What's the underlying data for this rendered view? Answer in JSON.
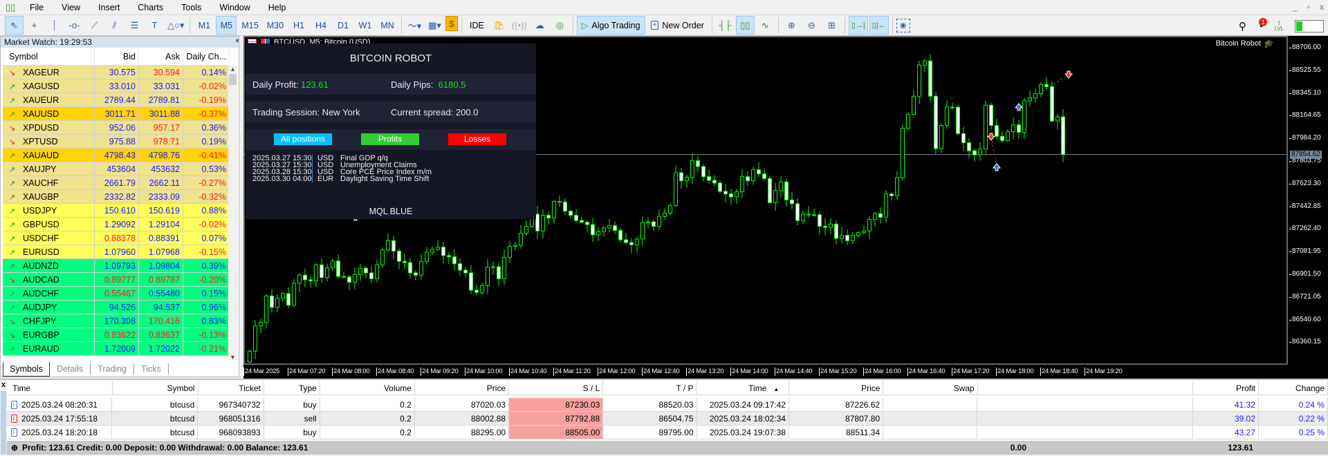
{
  "menu": {
    "items": [
      "File",
      "View",
      "Insert",
      "Charts",
      "Tools",
      "Window",
      "Help"
    ],
    "window_controls": [
      "_",
      "▫",
      "x"
    ]
  },
  "toolbar": {
    "drawing_tools": [
      {
        "name": "cursor",
        "glyph": "⇖",
        "selected": true
      },
      {
        "name": "crosshair",
        "glyph": "+"
      },
      {
        "name": "vertical-line",
        "glyph": "┊"
      },
      {
        "name": "horizontal-line",
        "glyph": "-o-"
      },
      {
        "name": "trendline",
        "glyph": "⟋"
      },
      {
        "name": "channel",
        "glyph": "⫽"
      },
      {
        "name": "fibonacci",
        "glyph": "☰"
      },
      {
        "name": "text",
        "glyph": "T"
      },
      {
        "name": "shapes",
        "glyph": "△○▾"
      }
    ],
    "timeframes": [
      "M1",
      "M5",
      "M15",
      "M30",
      "H1",
      "H4",
      "D1",
      "W1",
      "MN"
    ],
    "selected_timeframe": "M5",
    "chart_tools": [
      {
        "name": "chart-type",
        "glyph": "〜▾"
      },
      {
        "name": "indicators",
        "glyph": "▦▾"
      },
      {
        "name": "market-dollar",
        "glyph": "$"
      }
    ],
    "ide_label": "IDE",
    "service_icons": [
      "market-bag",
      "signals",
      "cloud",
      "vps"
    ],
    "algo_trading_label": "Algo Trading",
    "new_order_label": "New Order",
    "chart_view_icons": [
      {
        "name": "bar-chart",
        "glyph": "┤├"
      },
      {
        "name": "candlesticks",
        "glyph": "▯▯",
        "selected": true
      },
      {
        "name": "line-chart",
        "glyph": "∿"
      }
    ],
    "zoom_icons": [
      {
        "name": "zoom-in",
        "glyph": "⊕"
      },
      {
        "name": "zoom-out",
        "glyph": "⊖"
      },
      {
        "name": "grid",
        "glyph": "⊞"
      }
    ],
    "scroll_icons": [
      {
        "name": "autoscroll",
        "glyph": "▯→|",
        "selected": true
      },
      {
        "name": "chart-shift",
        "glyph": "▯|←",
        "selected": true
      }
    ],
    "screenshot_icon": "camera",
    "notification_count": "1",
    "level_label": "LVL"
  },
  "market_watch": {
    "title": "Market Watch: 19:29:53",
    "columns": [
      "Symbol",
      "Bid",
      "Ask",
      "Daily Ch..."
    ],
    "colors": {
      "blue": "#1a1aff",
      "red": "#ff1a1a",
      "up": "#1a9e1a",
      "down": "#e02020",
      "khaki": "#efe38f",
      "gold": "#ffd400",
      "yellow": "#ffff5a",
      "green": "#00ff80"
    },
    "rows": [
      {
        "symbol": "XAGEUR",
        "dir": "down",
        "bid": "30.575",
        "bid_c": "blue",
        "ask": "30.594",
        "ask_c": "red",
        "change": "0.14%",
        "chg_c": "blue",
        "bg": "khaki"
      },
      {
        "symbol": "XAGUSD",
        "dir": "up",
        "bid": "33.010",
        "bid_c": "blue",
        "ask": "33.031",
        "ask_c": "blue",
        "change": "-0.02%",
        "chg_c": "red",
        "bg": "khaki"
      },
      {
        "symbol": "XAUEUR",
        "dir": "up",
        "bid": "2789.44",
        "bid_c": "blue",
        "ask": "2789.81",
        "ask_c": "blue",
        "change": "-0.19%",
        "chg_c": "red",
        "bg": "khaki"
      },
      {
        "symbol": "XAUUSD",
        "dir": "up",
        "bid": "3011.71",
        "bid_c": "blue",
        "ask": "3011.88",
        "ask_c": "blue",
        "change": "-0.37%",
        "chg_c": "red",
        "bg": "gold"
      },
      {
        "symbol": "XPDUSD",
        "dir": "down",
        "bid": "952.06",
        "bid_c": "blue",
        "ask": "957.17",
        "ask_c": "red",
        "change": "0.36%",
        "chg_c": "blue",
        "bg": "khaki"
      },
      {
        "symbol": "XPTUSD",
        "dir": "down",
        "bid": "975.88",
        "bid_c": "blue",
        "ask": "978.71",
        "ask_c": "red",
        "change": "0.19%",
        "chg_c": "blue",
        "bg": "khaki"
      },
      {
        "symbol": "XAUAUD",
        "dir": "up",
        "bid": "4798.43",
        "bid_c": "blue",
        "ask": "4798.76",
        "ask_c": "blue",
        "change": "-0.41%",
        "chg_c": "red",
        "bg": "gold"
      },
      {
        "symbol": "XAUJPY",
        "dir": "up",
        "bid": "453604",
        "bid_c": "blue",
        "ask": "453632",
        "ask_c": "blue",
        "change": "0.53%",
        "chg_c": "blue",
        "bg": "khaki"
      },
      {
        "symbol": "XAUCHF",
        "dir": "up",
        "bid": "2661.79",
        "bid_c": "blue",
        "ask": "2662.11",
        "ask_c": "blue",
        "change": "-0.27%",
        "chg_c": "red",
        "bg": "khaki"
      },
      {
        "symbol": "XAUGBP",
        "dir": "up",
        "bid": "2332.82",
        "bid_c": "blue",
        "ask": "2333.09",
        "ask_c": "blue",
        "change": "-0.32%",
        "chg_c": "red",
        "bg": "khaki"
      },
      {
        "symbol": "USDJPY",
        "dir": "up",
        "bid": "150.610",
        "bid_c": "blue",
        "ask": "150.619",
        "ask_c": "blue",
        "change": "0.88%",
        "chg_c": "blue",
        "bg": "yellow"
      },
      {
        "symbol": "GBPUSD",
        "dir": "up",
        "bid": "1.29092",
        "bid_c": "blue",
        "ask": "1.29104",
        "ask_c": "blue",
        "change": "-0.02%",
        "chg_c": "red",
        "bg": "yellow"
      },
      {
        "symbol": "USDCHF",
        "dir": "up",
        "bid": "0.88378",
        "bid_c": "red",
        "ask": "0.88391",
        "ask_c": "blue",
        "change": "0.07%",
        "chg_c": "blue",
        "bg": "yellow"
      },
      {
        "symbol": "EURUSD",
        "dir": "up",
        "bid": "1.07960",
        "bid_c": "blue",
        "ask": "1.07968",
        "ask_c": "blue",
        "change": "-0.15%",
        "chg_c": "red",
        "bg": "yellow"
      },
      {
        "symbol": "AUDNZD",
        "dir": "up",
        "bid": "1.09793",
        "bid_c": "blue",
        "ask": "1.09804",
        "ask_c": "blue",
        "change": "0.39%",
        "chg_c": "blue",
        "bg": "green"
      },
      {
        "symbol": "AUDCAD",
        "dir": "down",
        "bid": "0.89777",
        "bid_c": "red",
        "ask": "0.89787",
        "ask_c": "red",
        "change": "-0.20%",
        "chg_c": "red",
        "bg": "green"
      },
      {
        "symbol": "AUDCHF",
        "dir": "up",
        "bid": "0.55467",
        "bid_c": "red",
        "ask": "0.55480",
        "ask_c": "blue",
        "change": "0.15%",
        "chg_c": "blue",
        "bg": "green"
      },
      {
        "symbol": "AUDJPY",
        "dir": "up",
        "bid": "94.526",
        "bid_c": "blue",
        "ask": "94.537",
        "ask_c": "blue",
        "change": "0.96%",
        "chg_c": "blue",
        "bg": "green"
      },
      {
        "symbol": "CHFJPY",
        "dir": "down",
        "bid": "170.398",
        "bid_c": "blue",
        "ask": "170.416",
        "ask_c": "red",
        "change": "0.83%",
        "chg_c": "blue",
        "bg": "green"
      },
      {
        "symbol": "EURGBP",
        "dir": "down",
        "bid": "0.83622",
        "bid_c": "red",
        "ask": "0.83637",
        "ask_c": "red",
        "change": "-0.13%",
        "chg_c": "red",
        "bg": "green"
      },
      {
        "symbol": "EURAUD",
        "dir": "up",
        "bid": "1.72009",
        "bid_c": "blue",
        "ask": "1.72022",
        "ask_c": "blue",
        "change": "-0.21%",
        "chg_c": "red",
        "bg": "green"
      }
    ],
    "tabs": [
      "Symbols",
      "Details",
      "Trading",
      "Ticks"
    ],
    "active_tab": "Symbols"
  },
  "chart": {
    "title": "BTCUSD, M5:  Bitcoin (USD)",
    "ea_label": "Bitcoin Robot",
    "current_price": "87854.62",
    "price_axis": [
      "88706.00",
      "88525.55",
      "88345.10",
      "88164.65",
      "87984.20",
      "87803.75",
      "87623.30",
      "87442.85",
      "87262.40",
      "87081.95",
      "86901.50",
      "86721.05",
      "86540.60",
      "86360.15"
    ],
    "time_axis": [
      "24 Mar 2025",
      "24 Mar 07:20",
      "24 Mar 08:00",
      "24 Mar 08:40",
      "24 Mar 09:20",
      "24 Mar 10:00",
      "24 Mar 10:40",
      "24 Mar 11:20",
      "24 Mar 12:00",
      "24 Mar 12:40",
      "24 Mar 13:20",
      "24 Mar 14:00",
      "24 Mar 14:40",
      "24 Mar 15:20",
      "24 Mar 16:00",
      "24 Mar 16:40",
      "24 Mar 17:20",
      "24 Mar 18:00",
      "24 Mar 18:40",
      "24 Mar 19:20"
    ],
    "colors": {
      "bull_outline": "#00ff00",
      "bear_fill": "#ffffff",
      "price_line": "#778899",
      "buy_marker": "#1e6fd0",
      "sell_marker": "#e03a1a"
    },
    "closes": [
      86287,
      86489,
      86516,
      86727,
      86636,
      86709,
      86746,
      86654,
      86828,
      86893,
      86856,
      86847,
      86975,
      86874,
      86951,
      87006,
      86883,
      86878,
      86837,
      86898,
      86948,
      86911,
      86865,
      86975,
      87094,
      87168,
      87085,
      87003,
      86993,
      86911,
      86893,
      87003,
      87076,
      87098,
      87116,
      87049,
      87039,
      86984,
      86933,
      86911,
      86773,
      86755,
      86810,
      86957,
      86960,
      86865,
      87034,
      87122,
      87131,
      87227,
      87282,
      87379,
      87245,
      87370,
      87348,
      87480,
      87476,
      87403,
      87370,
      87329,
      87315,
      87296,
      87214,
      87241,
      87269,
      87287,
      87249,
      87175,
      87153,
      87135,
      87181,
      87311,
      87318,
      87282,
      87361,
      87388,
      87447,
      87709,
      87645,
      87673,
      87805,
      87759,
      87678,
      87649,
      87627,
      87561,
      87540,
      87517,
      87557,
      87678,
      87645,
      87733,
      87700,
      87663,
      87471,
      87566,
      87636,
      87493,
      87462,
      87328,
      87379,
      87375,
      87375,
      87283,
      87274,
      87300,
      87186,
      87210,
      87168,
      87210,
      87232,
      87245,
      87337,
      87383,
      87355,
      87540,
      87526,
      87669,
      88064,
      88174,
      88319,
      88567,
      88600,
      88319,
      87902,
      88086,
      88232,
      88232,
      88021,
      87948,
      87884,
      87852,
      87897,
      88247,
      88086,
      87999,
      87966,
      88036,
      88091,
      88031,
      88282,
      88306,
      88339,
      88412,
      88396,
      88122,
      88154,
      87854.62
    ]
  },
  "robot_panel": {
    "title": "BITCOIN ROBOT",
    "daily_profit_label": "Daily Profit:",
    "daily_profit_value": "123.61",
    "daily_pips_label": "Daily Pips:",
    "daily_pips_value": "6180.5",
    "session_text": "Trading Session: New York",
    "spread_text": "Current spread: 200.0",
    "buttons": [
      {
        "label": "All positions",
        "color": "#00bfff"
      },
      {
        "label": "Profits",
        "color": "#32cd32"
      },
      {
        "label": "Losses",
        "color": "#ff0000"
      }
    ],
    "news": [
      {
        "datetime": "2025.03.27 15:30",
        "currency": "USD",
        "event": "Final GDP q/q"
      },
      {
        "datetime": "2025.03.27 15:30",
        "currency": "USD",
        "event": "Unemployment Claims"
      },
      {
        "datetime": "2025.03.28 15:30",
        "currency": "USD",
        "event": "Core PCE Price Index m/m"
      },
      {
        "datetime": "2025.03.30 04:00",
        "currency": "EUR",
        "event": "Daylight Saving Time Shift"
      }
    ],
    "footer": "MQL BLUE",
    "value_color": "#22dd22"
  },
  "positions": {
    "columns": [
      "Time",
      "Symbol",
      "Ticket",
      "Type",
      "Volume",
      "Price",
      "S / L",
      "T / P",
      "Time",
      "Price",
      "Swap",
      "",
      "Profit",
      "Change"
    ],
    "sort_indicator": "▲",
    "rows": [
      {
        "time": "2025.03.24 08:20:31",
        "symbol": "btcusd",
        "ticket": "967340732",
        "type": "buy",
        "volume": "0.2",
        "price": "87020.03",
        "sl": "87230.03",
        "tp": "88520.03",
        "time2": "2025.03.24 09:17:42",
        "price2": "87226.62",
        "swap": "",
        "blank": "",
        "profit": "41.32",
        "change": "0.24 %"
      },
      {
        "time": "2025.03.24 17:55:18",
        "symbol": "btcusd",
        "ticket": "968051316",
        "type": "sell",
        "volume": "0.2",
        "price": "88002.88",
        "sl": "87792.88",
        "tp": "86504.75",
        "time2": "2025.03.24 18:02:34",
        "price2": "87807.80",
        "swap": "",
        "blank": "",
        "profit": "39.02",
        "change": "0.22 %"
      },
      {
        "time": "2025.03.24 18:20:18",
        "symbol": "btcusd",
        "ticket": "968093893",
        "type": "buy",
        "volume": "0.2",
        "price": "88295.00",
        "sl": "88505.00",
        "tp": "89795.00",
        "time2": "2025.03.24 19:07:38",
        "price2": "88511.34",
        "swap": "",
        "blank": "",
        "profit": "43.27",
        "change": "0.25 %"
      }
    ],
    "summary": "Profit: 123.61  Credit: 0.00  Deposit: 0.00  Withdrawal: 0.00  Balance: 123.61",
    "total_swap": "0.00",
    "total_profit": "123.61",
    "colors": {
      "sl_bg": "#f8a0a0",
      "alt_row": "#ebebeb",
      "profit": "#1a1aff"
    }
  }
}
